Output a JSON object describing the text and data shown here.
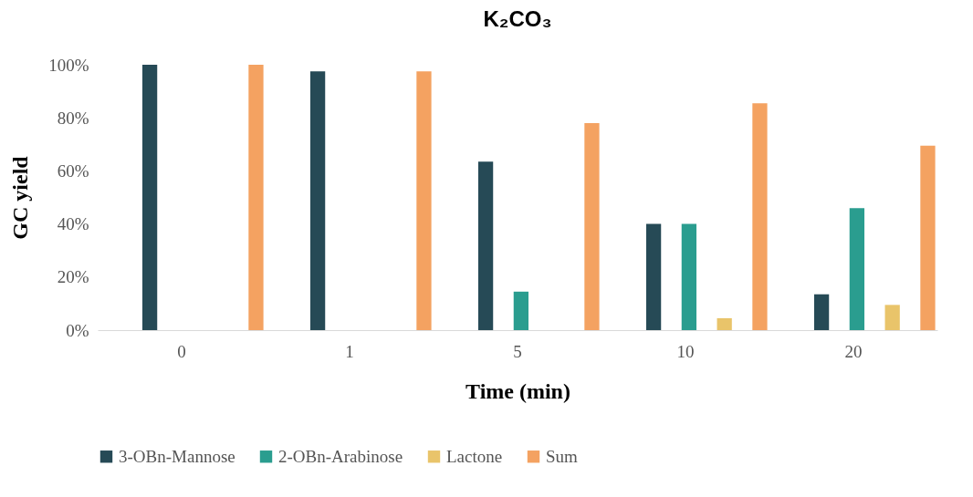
{
  "chart_data": {
    "type": "bar",
    "title": "K₂CO₃",
    "xlabel": "Time (min)",
    "ylabel": "GC yield",
    "categories": [
      "0",
      "1",
      "5",
      "10",
      "20"
    ],
    "series": [
      {
        "name": "3-OBn-Mannose",
        "color": "#264a56",
        "values": [
          100,
          97.5,
          63.5,
          40,
          13.5
        ]
      },
      {
        "name": "2-OBn-Arabinose",
        "color": "#2a9d8f",
        "values": [
          0,
          0,
          14.5,
          40,
          46
        ]
      },
      {
        "name": "Lactone",
        "color": "#e9c46a",
        "values": [
          0,
          0,
          0,
          4.5,
          9.5
        ]
      },
      {
        "name": "Sum",
        "color": "#f4a261",
        "values": [
          100,
          97.5,
          78,
          85.5,
          69.5
        ]
      }
    ],
    "ylim": [
      0,
      100
    ],
    "yticks": [
      {
        "value": 0,
        "label": "0%"
      },
      {
        "value": 20,
        "label": "20%"
      },
      {
        "value": 40,
        "label": "40%"
      },
      {
        "value": 60,
        "label": "60%"
      },
      {
        "value": 80,
        "label": "80%"
      },
      {
        "value": 100,
        "label": "100%"
      }
    ],
    "grid": false,
    "legend": "bottom"
  }
}
